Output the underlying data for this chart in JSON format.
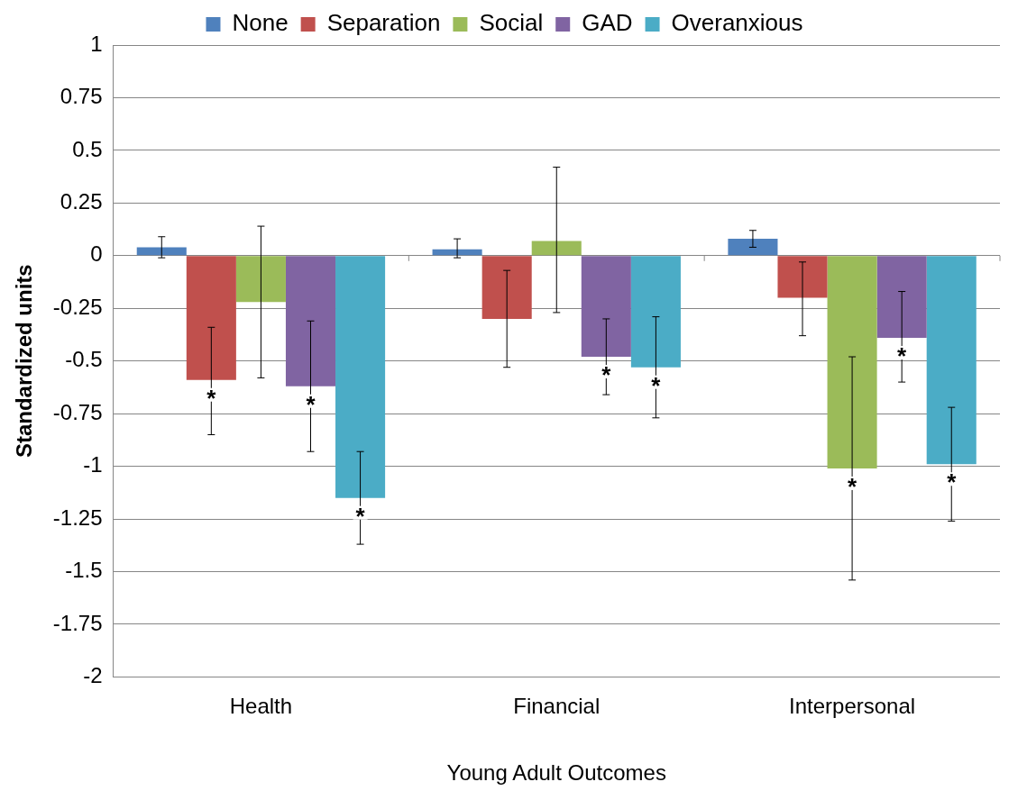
{
  "chart_data": {
    "type": "bar",
    "xlabel": "Young Adult Outcomes",
    "ylabel": "Standardized units",
    "categories": [
      "Health",
      "Financial",
      "Interpersonal"
    ],
    "series": [
      {
        "name": "None",
        "color": "#4f81bd",
        "values": [
          0.04,
          0.03,
          0.08
        ],
        "errors": [
          [
            -0.01,
            0.09
          ],
          [
            -0.01,
            0.08
          ],
          [
            0.04,
            0.12
          ]
        ]
      },
      {
        "name": "Separation",
        "color": "#c0504d",
        "values": [
          -0.59,
          -0.3,
          -0.2
        ],
        "errors": [
          [
            -0.85,
            -0.34
          ],
          [
            -0.53,
            -0.07
          ],
          [
            -0.38,
            -0.03
          ]
        ],
        "value_labels": [
          "*",
          null,
          null
        ]
      },
      {
        "name": "Social",
        "color": "#9bbb59",
        "values": [
          -0.22,
          0.07,
          -1.01
        ],
        "errors": [
          [
            -0.58,
            0.14
          ],
          [
            -0.27,
            0.42
          ],
          [
            -1.54,
            -0.48
          ]
        ],
        "value_labels": [
          null,
          null,
          "*"
        ]
      },
      {
        "name": "GAD",
        "color": "#8064a2",
        "values": [
          -0.62,
          -0.48,
          -0.39
        ],
        "errors": [
          [
            -0.93,
            -0.31
          ],
          [
            -0.66,
            -0.3
          ],
          [
            -0.6,
            -0.17
          ]
        ],
        "value_labels": [
          "*",
          "*",
          "*"
        ]
      },
      {
        "name": "Overanxious",
        "color": "#4bacc6",
        "values": [
          -1.15,
          -0.53,
          -0.99
        ],
        "errors": [
          [
            -1.37,
            -0.93
          ],
          [
            -0.77,
            -0.29
          ],
          [
            -1.26,
            -0.72
          ]
        ],
        "value_labels": [
          "*",
          "*",
          "*"
        ]
      }
    ],
    "ylim": [
      -2,
      1
    ],
    "yticks": [
      -2,
      -1.75,
      -1.5,
      -1.25,
      -1,
      -0.75,
      -0.5,
      -0.25,
      0,
      0.25,
      0.5,
      0.75,
      1
    ],
    "grid": "y",
    "legend": "top"
  }
}
